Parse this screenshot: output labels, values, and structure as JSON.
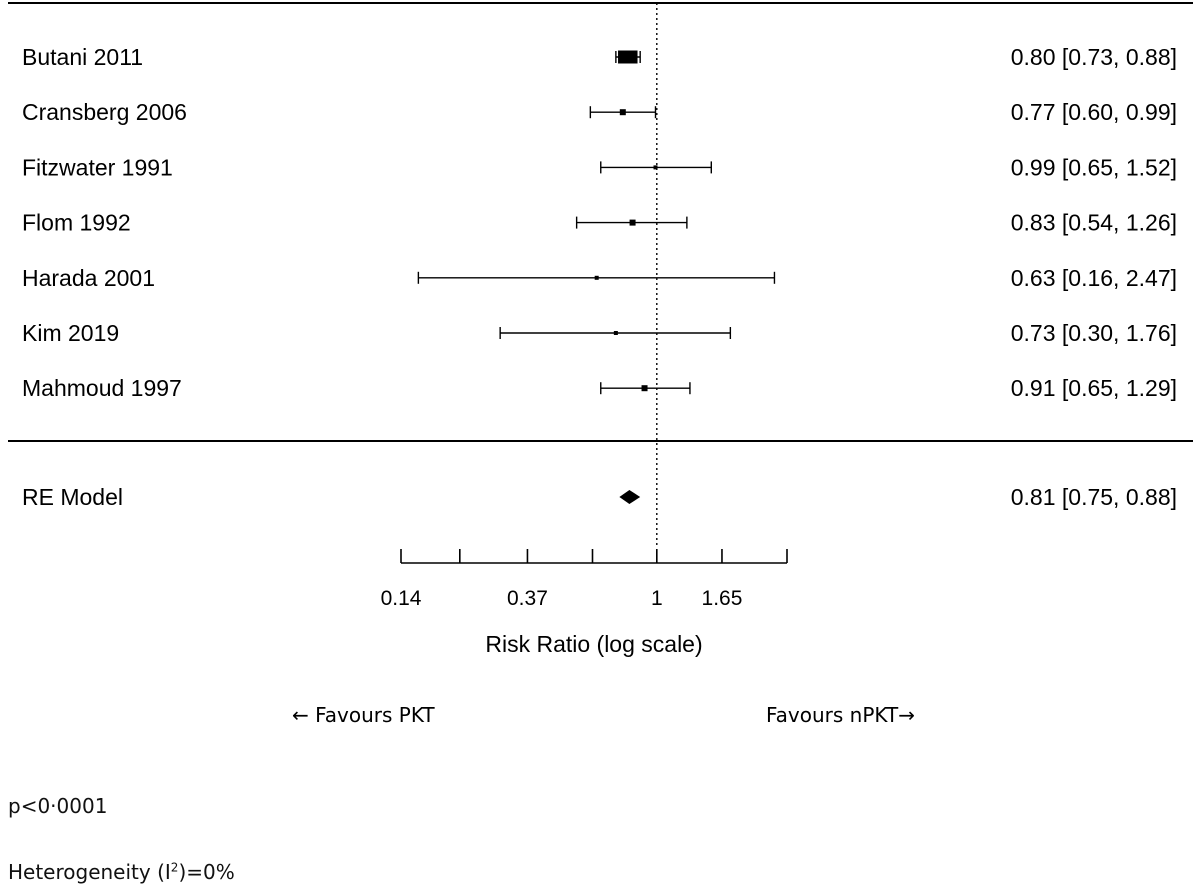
{
  "chart_data": {
    "type": "forest",
    "scale": "log",
    "x_ticks": [
      0.14,
      0.22,
      0.37,
      0.61,
      1,
      1.65,
      2.72
    ],
    "x_tick_labels": [
      "0.14",
      "",
      "0.37",
      "",
      "1",
      "1.65",
      ""
    ],
    "xlabel": "Risk Ratio (log scale)",
    "reference_line": 1,
    "studies": [
      {
        "label": "Butani  2011",
        "estimate": 0.8,
        "lower": 0.73,
        "upper": 0.88,
        "weight_mark": "large",
        "ci_text": "0.80 [0.73, 0.88]"
      },
      {
        "label": "Cransberg  2006",
        "estimate": 0.77,
        "lower": 0.6,
        "upper": 0.99,
        "weight_mark": "small",
        "ci_text": "0.77 [0.60, 0.99]"
      },
      {
        "label": "Fitzwater  1991",
        "estimate": 0.99,
        "lower": 0.65,
        "upper": 1.52,
        "weight_mark": "tiny",
        "ci_text": "0.99 [0.65, 1.52]"
      },
      {
        "label": "Flom 1992",
        "estimate": 0.83,
        "lower": 0.54,
        "upper": 1.26,
        "weight_mark": "small",
        "ci_text": "0.83 [0.54, 1.26]"
      },
      {
        "label": "Harada 2001",
        "estimate": 0.63,
        "lower": 0.16,
        "upper": 2.47,
        "weight_mark": "tiny",
        "ci_text": "0.63 [0.16, 2.47]"
      },
      {
        "label": "Kim 2019",
        "estimate": 0.73,
        "lower": 0.3,
        "upper": 1.76,
        "weight_mark": "tiny",
        "ci_text": "0.73 [0.30, 1.76]"
      },
      {
        "label": "Mahmoud 1997",
        "estimate": 0.91,
        "lower": 0.65,
        "upper": 1.29,
        "weight_mark": "small",
        "ci_text": "0.91 [0.65, 1.29]"
      }
    ],
    "summary": {
      "label": "RE Model",
      "estimate": 0.81,
      "lower": 0.75,
      "upper": 0.88,
      "ci_text": "0.81 [0.75, 0.88]"
    },
    "favours_left": "← Favours PKT",
    "favours_right": "Favours nPKT→"
  },
  "stats": {
    "p_value": "p<0·0001",
    "heterogeneity_prefix": "Heterogeneity (I",
    "heterogeneity_sup": "2",
    "heterogeneity_suffix": ")=0%"
  }
}
